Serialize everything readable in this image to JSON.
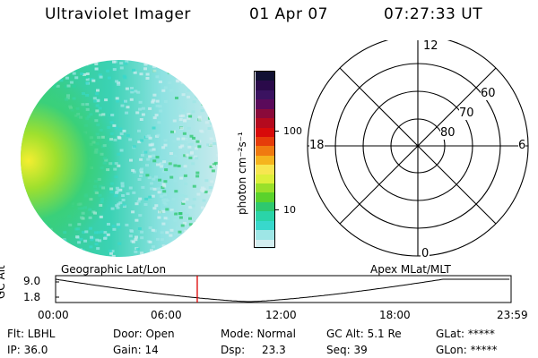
{
  "header": {
    "title": "Ultraviolet Imager",
    "date": "01 Apr 07",
    "time": "07:27:33 UT"
  },
  "colorbar": {
    "label": "photon cm⁻²s⁻¹",
    "ticks": [
      "100",
      "10"
    ],
    "colors": [
      "#111133",
      "#2a0a4a",
      "#3a1260",
      "#5a0a5a",
      "#8a0a3a",
      "#b40a1e",
      "#d80a0a",
      "#e63c0a",
      "#f07a10",
      "#f5b41e",
      "#f7e650",
      "#dcef3a",
      "#9ae02a",
      "#5ad22c",
      "#2ec86e",
      "#2ad4a8",
      "#38d8cc",
      "#9ee6e6",
      "#d2eef0"
    ]
  },
  "polar_plot": {
    "clock_labels": {
      "top": "12",
      "left": "18",
      "right": "6",
      "bottom": "0"
    },
    "latitude_labels": [
      "60",
      "70",
      "80"
    ]
  },
  "timeline": {
    "axis_title": "GC Alt",
    "y_ticks": [
      "9.0",
      "1.8"
    ],
    "left_label": "Geographic Lat/Lon",
    "right_label": "Apex MLat/MLT",
    "x_ticks": [
      "00:00",
      "06:00",
      "12:00",
      "18:00",
      "23:59"
    ],
    "current_time_hours": 7.458,
    "marker_color": "#dd0000"
  },
  "footer": {
    "row1": {
      "flt": "Flt: LBHL",
      "door": "Door: Open",
      "mode": "Mode: Normal",
      "gcalt": "GC Alt: 5.1 Re",
      "glat": "GLat: *****"
    },
    "row2": {
      "ip": "IP: 36.0",
      "gain": "Gain: 14",
      "dsp": "Dsp:",
      "dsp_value": "23.3",
      "seq": "Seq: 39",
      "glon": "GLon: *****"
    }
  }
}
